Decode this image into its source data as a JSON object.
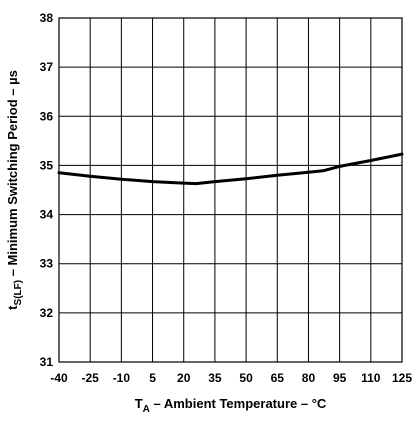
{
  "chart_data": {
    "type": "line",
    "xlabel": {
      "main": "T",
      "sub": "A",
      "rest": " – Ambient Temperature – °C"
    },
    "ylabel": {
      "main": "t",
      "sub": "S(LF)",
      "rest": " – Minimum Switching Period – µs"
    },
    "x_ticks": [
      "-40",
      "-25",
      "-10",
      "5",
      "20",
      "35",
      "50",
      "65",
      "80",
      "95",
      "110",
      "125"
    ],
    "xlim": [
      -40,
      125
    ],
    "ylim": [
      31,
      38
    ],
    "y_ticks": [
      31,
      32,
      33,
      34,
      35,
      36,
      37,
      38
    ],
    "grid": true,
    "series": [
      {
        "x": [
          -40,
          -25,
          -10,
          5,
          20,
          26,
          35,
          50,
          65,
          80,
          87,
          95,
          110,
          125
        ],
        "y": [
          34.85,
          34.78,
          34.72,
          34.67,
          34.64,
          34.63,
          34.67,
          34.73,
          34.8,
          34.86,
          34.89,
          34.98,
          35.1,
          35.23
        ]
      }
    ]
  }
}
